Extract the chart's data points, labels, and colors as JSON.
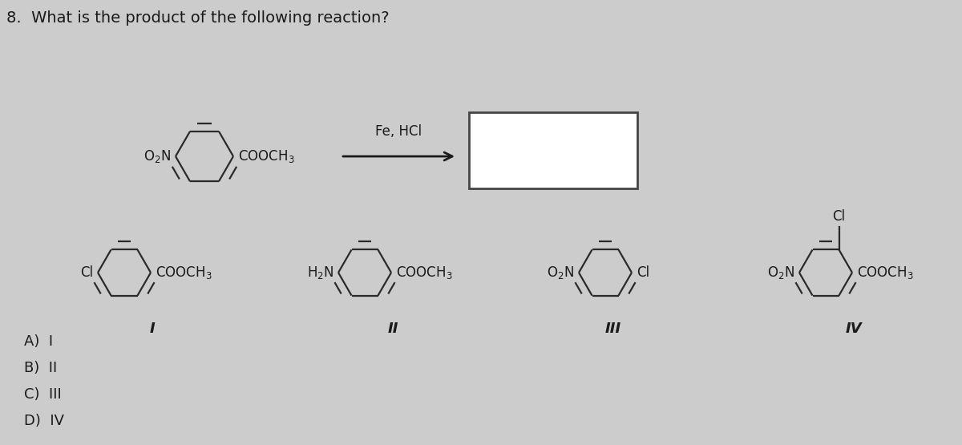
{
  "title": "8.  What is the product of the following reaction?",
  "background_color": "#cccccc",
  "text_color": "#1a1a1a",
  "reagent_label": "Fe, HCl",
  "choices": [
    "A)  I",
    "B)  II",
    "C)  III",
    "D)  IV"
  ],
  "roman_labels": [
    "I",
    "II",
    "III",
    "IV"
  ],
  "figsize": [
    12.0,
    5.55
  ],
  "dpi": 100,
  "ring_color": "#2a2a2a",
  "lw_ring": 1.6,
  "lw_double": 3.2,
  "fs_title": 14,
  "fs_chem": 12,
  "fs_roman": 13,
  "fs_choice": 13
}
